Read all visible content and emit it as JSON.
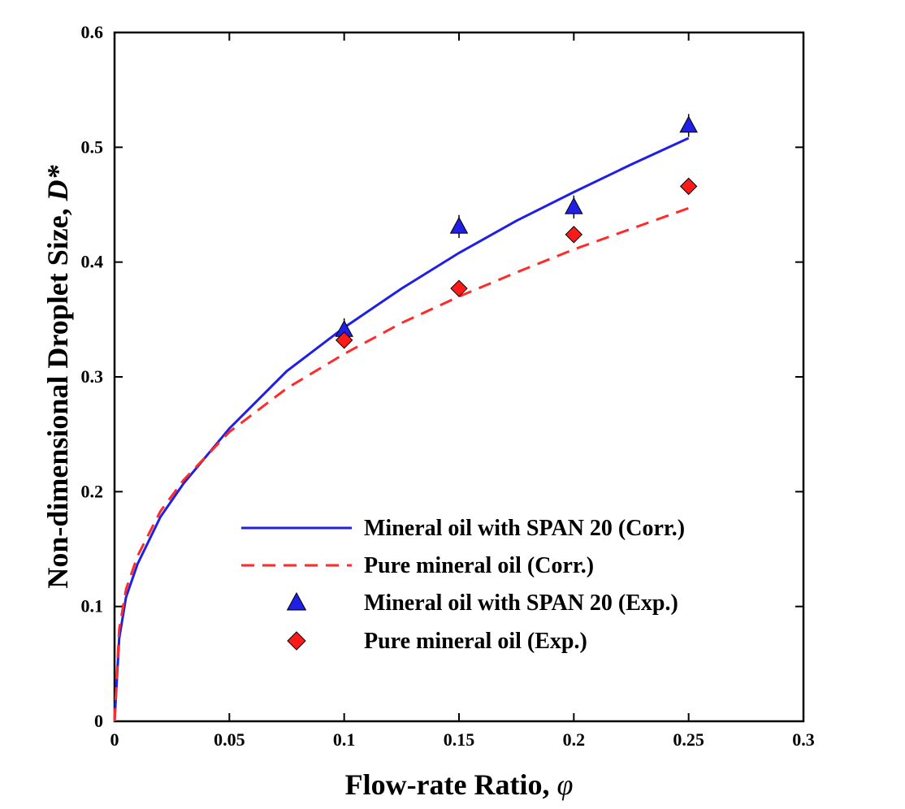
{
  "chart_data": {
    "type": "line",
    "xlabel": "Flow-rate Ratio, ",
    "xlabel_symbol": "φ",
    "ylabel": "Non-dimensional Droplet Size, ",
    "ylabel_symbol": "D*",
    "xlim": [
      0,
      0.3
    ],
    "ylim": [
      0,
      0.6
    ],
    "x_ticks": [
      0,
      0.05,
      0.1,
      0.15,
      0.2,
      0.25,
      0.3
    ],
    "x_tick_labels": [
      "0",
      "0.05",
      "0.1",
      "0.15",
      "0.2",
      "0.25",
      "0.3"
    ],
    "y_ticks": [
      0,
      0.1,
      0.2,
      0.3,
      0.4,
      0.5,
      0.6
    ],
    "y_tick_labels": [
      "0",
      "0.1",
      "0.2",
      "0.3",
      "0.4",
      "0.5",
      "0.6"
    ],
    "grid": false,
    "legend_position": "bottom-right",
    "series": [
      {
        "name": "Mineral oil with SPAN 20 (Corr.)",
        "kind": "line",
        "style": "solid",
        "color": "#1f1fe6",
        "x": [
          0,
          0.002,
          0.005,
          0.01,
          0.02,
          0.03,
          0.05,
          0.075,
          0.1,
          0.125,
          0.15,
          0.175,
          0.2,
          0.225,
          0.25
        ],
        "y": [
          0,
          0.072,
          0.108,
          0.137,
          0.178,
          0.207,
          0.255,
          0.305,
          0.343,
          0.377,
          0.408,
          0.436,
          0.461,
          0.485,
          0.508
        ]
      },
      {
        "name": "Pure mineral oil (Corr.)",
        "kind": "line",
        "style": "dashed",
        "color": "#ff2b2b",
        "x": [
          0,
          0.002,
          0.005,
          0.01,
          0.02,
          0.03,
          0.05,
          0.075,
          0.1,
          0.125,
          0.15,
          0.175,
          0.2,
          0.225,
          0.25
        ],
        "y": [
          0,
          0.08,
          0.115,
          0.144,
          0.183,
          0.21,
          0.252,
          0.29,
          0.32,
          0.347,
          0.37,
          0.391,
          0.411,
          0.429,
          0.447
        ]
      },
      {
        "name": "Mineral oil with SPAN 20 (Exp.)",
        "kind": "scatter",
        "marker": "triangle",
        "color": "#1f1fe6",
        "x": [
          0.1,
          0.15,
          0.2,
          0.25
        ],
        "y": [
          0.341,
          0.431,
          0.448,
          0.519
        ],
        "err": [
          0.01,
          0.01,
          0.01,
          0.01
        ]
      },
      {
        "name": "Pure mineral oil (Exp.)",
        "kind": "scatter",
        "marker": "diamond",
        "color": "#ff1a1a",
        "x": [
          0.1,
          0.15,
          0.2,
          0.25
        ],
        "y": [
          0.332,
          0.377,
          0.424,
          0.466
        ],
        "err": [
          0.004,
          0.004,
          0.004,
          0.004
        ]
      }
    ]
  }
}
